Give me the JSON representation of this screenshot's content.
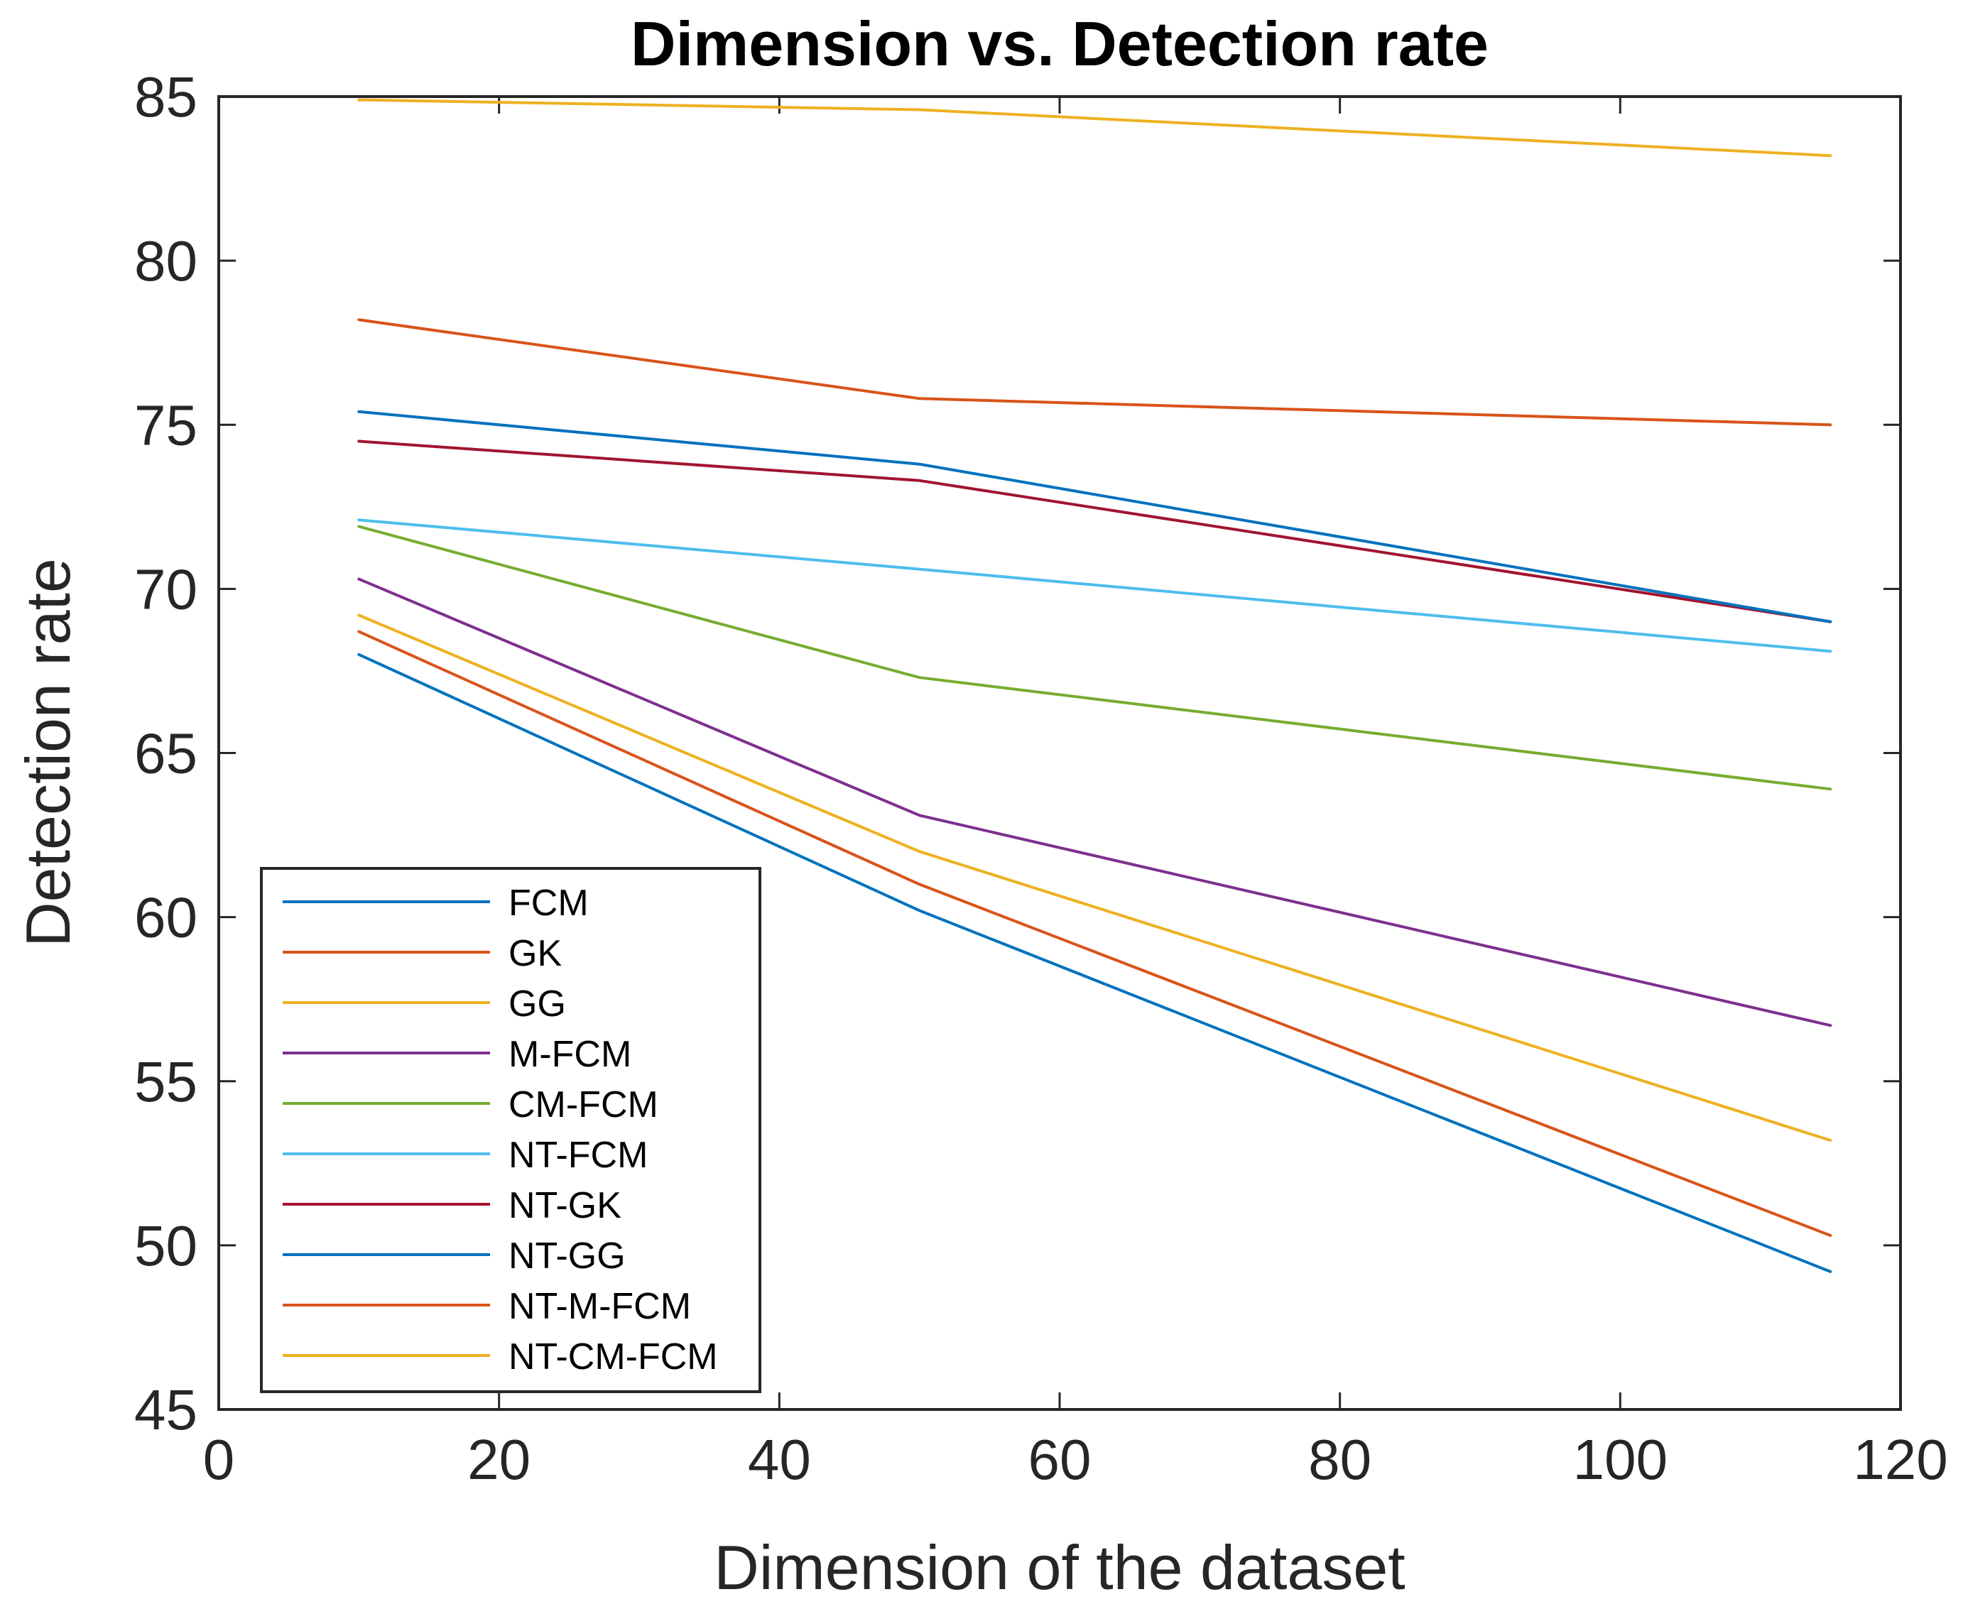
{
  "chart_data": {
    "type": "line",
    "title": "Dimension vs. Detection rate",
    "xlabel": "Dimension of the dataset",
    "ylabel": "Detection rate",
    "xlim": [
      0,
      120
    ],
    "ylim": [
      45,
      85
    ],
    "xticks": [
      0,
      20,
      40,
      60,
      80,
      100,
      120
    ],
    "yticks": [
      45,
      50,
      55,
      60,
      65,
      70,
      75,
      80,
      85
    ],
    "grid": false,
    "legend_position": "bottom-left",
    "x": [
      10,
      50,
      115
    ],
    "series": [
      {
        "name": "FCM",
        "color": "#0072BD",
        "values": [
          68.0,
          60.2,
          49.2
        ]
      },
      {
        "name": "GK",
        "color": "#D95319",
        "values": [
          68.7,
          61.0,
          50.3
        ]
      },
      {
        "name": "GG",
        "color": "#EDB120",
        "values": [
          69.2,
          62.0,
          53.2
        ]
      },
      {
        "name": "M-FCM",
        "color": "#7E2F8E",
        "values": [
          70.3,
          63.1,
          56.7
        ]
      },
      {
        "name": "CM-FCM",
        "color": "#77AC30",
        "values": [
          71.9,
          67.3,
          63.9
        ]
      },
      {
        "name": "NT-FCM",
        "color": "#4DBEEE",
        "values": [
          72.1,
          70.6,
          68.1
        ]
      },
      {
        "name": "NT-GK",
        "color": "#A2142F",
        "values": [
          74.5,
          73.3,
          69.0
        ]
      },
      {
        "name": "NT-GG",
        "color": "#0072BD",
        "values": [
          75.4,
          73.8,
          69.0
        ]
      },
      {
        "name": "NT-M-FCM",
        "color": "#D95319",
        "values": [
          78.2,
          75.8,
          75.0
        ]
      },
      {
        "name": "NT-CM-FCM",
        "color": "#EDB120",
        "values": [
          84.9,
          84.6,
          83.2
        ]
      }
    ]
  }
}
